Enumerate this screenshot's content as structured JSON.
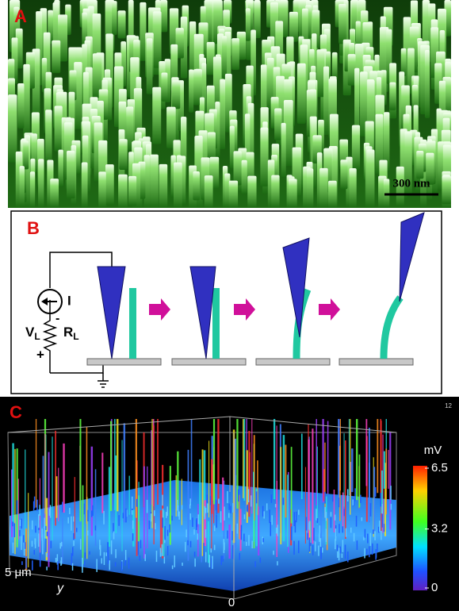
{
  "panel_a": {
    "label": "A",
    "scale_bar": "300 nm"
  },
  "panel_b": {
    "label": "B",
    "circuit": {
      "current": "I",
      "minus": "-",
      "plus": "+",
      "voltage": "V",
      "voltage_sub": "L",
      "resistor": "R",
      "resistor_sub": "L"
    }
  },
  "panel_c": {
    "label": "C",
    "corner": "12",
    "axis_y_length": "5 μm",
    "axis_y": "y",
    "axis_x_origin": "0",
    "colorbar": {
      "unit": "mV",
      "ticks": [
        6.5,
        3.2,
        0
      ]
    }
  }
}
